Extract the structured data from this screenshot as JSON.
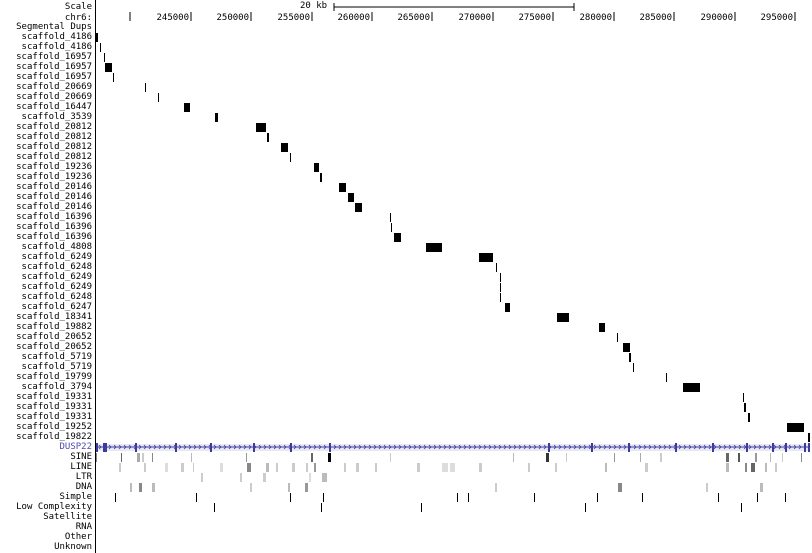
{
  "header": {
    "scale_label": "Scale",
    "chrom_label": "chr6:",
    "scale_value": "20 kb"
  },
  "ruler": {
    "ticks": [
      "245000",
      "250000",
      "255000",
      "260000",
      "265000",
      "270000",
      "275000",
      "280000",
      "285000",
      "290000",
      "295000"
    ]
  },
  "segdups": {
    "title": "Segmental Dups",
    "items": [
      {
        "label": "scaffold_4186",
        "s": 95,
        "e": 98
      },
      {
        "label": "scaffold_4186",
        "s": 100,
        "e": 101
      },
      {
        "label": "scaffold_16957",
        "s": 104,
        "e": 105
      },
      {
        "label": "scaffold_16957",
        "s": 105,
        "e": 112
      },
      {
        "label": "scaffold_16957",
        "s": 113,
        "e": 114
      },
      {
        "label": "scaffold_20669",
        "s": 145,
        "e": 146
      },
      {
        "label": "scaffold_20669",
        "s": 158,
        "e": 159
      },
      {
        "label": "scaffold_16447",
        "s": 184,
        "e": 190
      },
      {
        "label": "scaffold_3539",
        "s": 215,
        "e": 218
      },
      {
        "label": "scaffold_20812",
        "s": 256,
        "e": 266
      },
      {
        "label": "scaffold_20812",
        "s": 267,
        "e": 269
      },
      {
        "label": "scaffold_20812",
        "s": 281,
        "e": 288
      },
      {
        "label": "scaffold_20812",
        "s": 290,
        "e": 291
      },
      {
        "label": "scaffold_19236",
        "s": 314,
        "e": 319
      },
      {
        "label": "scaffold_19236",
        "s": 320,
        "e": 322
      },
      {
        "label": "scaffold_20146",
        "s": 339,
        "e": 346
      },
      {
        "label": "scaffold_20146",
        "s": 348,
        "e": 354
      },
      {
        "label": "scaffold_20146",
        "s": 355,
        "e": 362
      },
      {
        "label": "scaffold_16396",
        "s": 390,
        "e": 391
      },
      {
        "label": "scaffold_16396",
        "s": 391,
        "e": 392
      },
      {
        "label": "scaffold_16396",
        "s": 394,
        "e": 401
      },
      {
        "label": "scaffold_4808",
        "s": 426,
        "e": 442
      },
      {
        "label": "scaffold_6249",
        "s": 479,
        "e": 493
      },
      {
        "label": "scaffold_6248",
        "s": 496,
        "e": 497
      },
      {
        "label": "scaffold_6249",
        "s": 500,
        "e": 501
      },
      {
        "label": "scaffold_6249",
        "s": 500,
        "e": 501
      },
      {
        "label": "scaffold_6248",
        "s": 500,
        "e": 501
      },
      {
        "label": "scaffold_6247",
        "s": 505,
        "e": 510
      },
      {
        "label": "scaffold_18341",
        "s": 557,
        "e": 569
      },
      {
        "label": "scaffold_19882",
        "s": 599,
        "e": 605
      },
      {
        "label": "scaffold_20652",
        "s": 617,
        "e": 618
      },
      {
        "label": "scaffold_20652",
        "s": 623,
        "e": 630
      },
      {
        "label": "scaffold_5719",
        "s": 629,
        "e": 631
      },
      {
        "label": "scaffold_5719",
        "s": 633,
        "e": 634
      },
      {
        "label": "scaffold_19799",
        "s": 666,
        "e": 667
      },
      {
        "label": "scaffold_3794",
        "s": 683,
        "e": 700
      },
      {
        "label": "scaffold_19331",
        "s": 743,
        "e": 744
      },
      {
        "label": "scaffold_19331",
        "s": 744,
        "e": 746
      },
      {
        "label": "scaffold_19331",
        "s": 748,
        "e": 750
      },
      {
        "label": "scaffold_19252",
        "s": 787,
        "e": 804
      },
      {
        "label": "scaffold_19822",
        "s": 808,
        "e": 810
      }
    ]
  },
  "gene": {
    "label": "DUSP22",
    "exons": [
      96,
      103,
      105,
      135,
      175,
      210,
      253,
      290,
      329,
      548,
      591,
      628,
      675,
      712,
      746,
      772,
      785,
      804,
      808
    ]
  },
  "repeats": {
    "classes": [
      {
        "label": "SINE",
        "marks": [
          [
            96,
            1,
            "#888"
          ],
          [
            121,
            1,
            "#666"
          ],
          [
            137,
            3,
            "#aaa"
          ],
          [
            142,
            2,
            "#ccc"
          ],
          [
            152,
            1,
            "#888"
          ],
          [
            191,
            1,
            "#bbb"
          ],
          [
            246,
            1,
            "#999"
          ],
          [
            311,
            2,
            "#666"
          ],
          [
            328,
            3,
            "#000"
          ],
          [
            390,
            1,
            "#ccc"
          ],
          [
            513,
            1,
            "#bbb"
          ],
          [
            546,
            3,
            "#333"
          ],
          [
            566,
            1,
            "#ccc"
          ],
          [
            614,
            1,
            "#999"
          ],
          [
            640,
            1,
            "#aaa"
          ],
          [
            660,
            2,
            "#ccc"
          ],
          [
            726,
            3,
            "#666"
          ],
          [
            738,
            2,
            "#555"
          ],
          [
            755,
            2,
            "#999"
          ],
          [
            770,
            1,
            "#bbb"
          ],
          [
            782,
            1,
            "#ccc"
          ],
          [
            801,
            1,
            "#888"
          ]
        ]
      },
      {
        "label": "LINE",
        "marks": [
          [
            119,
            2,
            "#ccc"
          ],
          [
            144,
            2,
            "#ccc"
          ],
          [
            165,
            3,
            "#ddd"
          ],
          [
            181,
            3,
            "#ccc"
          ],
          [
            193,
            1,
            "#ccc"
          ],
          [
            220,
            3,
            "#ddd"
          ],
          [
            247,
            4,
            "#888"
          ],
          [
            266,
            3,
            "#bbb"
          ],
          [
            276,
            2,
            "#ccc"
          ],
          [
            292,
            3,
            "#ccc"
          ],
          [
            306,
            2,
            "#ccc"
          ],
          [
            314,
            2,
            "#999"
          ],
          [
            344,
            2,
            "#ccc"
          ],
          [
            356,
            3,
            "#ccc"
          ],
          [
            375,
            2,
            "#ccc"
          ],
          [
            417,
            3,
            "#ccc"
          ],
          [
            442,
            6,
            "#ddd"
          ],
          [
            450,
            5,
            "#ddd"
          ],
          [
            479,
            3,
            "#ccc"
          ],
          [
            528,
            2,
            "#ccc"
          ],
          [
            555,
            2,
            "#ccc"
          ],
          [
            605,
            2,
            "#bbb"
          ],
          [
            645,
            3,
            "#ccc"
          ],
          [
            726,
            3,
            "#bbb"
          ],
          [
            745,
            2,
            "#888"
          ],
          [
            751,
            4,
            "#666"
          ],
          [
            765,
            2,
            "#bbb"
          ],
          [
            775,
            2,
            "#ccc"
          ]
        ]
      },
      {
        "label": "LTR",
        "marks": [
          [
            201,
            2,
            "#ccc"
          ],
          [
            240,
            2,
            "#ccc"
          ],
          [
            263,
            3,
            "#ccc"
          ],
          [
            309,
            2,
            "#ddd"
          ],
          [
            322,
            5,
            "#bbb"
          ]
        ]
      },
      {
        "label": "DNA",
        "marks": [
          [
            130,
            2,
            "#bbb"
          ],
          [
            139,
            3,
            "#888"
          ],
          [
            152,
            3,
            "#bbb"
          ],
          [
            250,
            2,
            "#ccc"
          ],
          [
            288,
            2,
            "#bbb"
          ],
          [
            305,
            3,
            "#999"
          ],
          [
            495,
            2,
            "#ccc"
          ],
          [
            618,
            4,
            "#888"
          ],
          [
            706,
            2,
            "#ccc"
          ],
          [
            760,
            3,
            "#bbb"
          ]
        ]
      },
      {
        "label": "Simple",
        "marks": [
          [
            115,
            1,
            "#000"
          ],
          [
            196,
            1,
            "#000"
          ],
          [
            290,
            1,
            "#000"
          ],
          [
            323,
            1,
            "#000"
          ],
          [
            457,
            1,
            "#000"
          ],
          [
            468,
            1,
            "#000"
          ],
          [
            534,
            1,
            "#000"
          ],
          [
            597,
            1,
            "#000"
          ],
          [
            642,
            1,
            "#000"
          ],
          [
            718,
            1,
            "#000"
          ],
          [
            757,
            1,
            "#000"
          ],
          [
            785,
            1,
            "#000"
          ]
        ]
      },
      {
        "label": "Low Complexity",
        "marks": [
          [
            214,
            1,
            "#000"
          ],
          [
            321,
            1,
            "#000"
          ],
          [
            421,
            1,
            "#000"
          ],
          [
            585,
            1,
            "#000"
          ],
          [
            741,
            1,
            "#000"
          ]
        ]
      },
      {
        "label": "Satellite",
        "marks": []
      },
      {
        "label": "RNA",
        "marks": []
      },
      {
        "label": "Other",
        "marks": []
      },
      {
        "label": "Unknown",
        "marks": []
      }
    ]
  },
  "colors": {
    "feature": "#000000",
    "gene": "#3b3b9c",
    "gene_bg": "#e8e8f4"
  }
}
